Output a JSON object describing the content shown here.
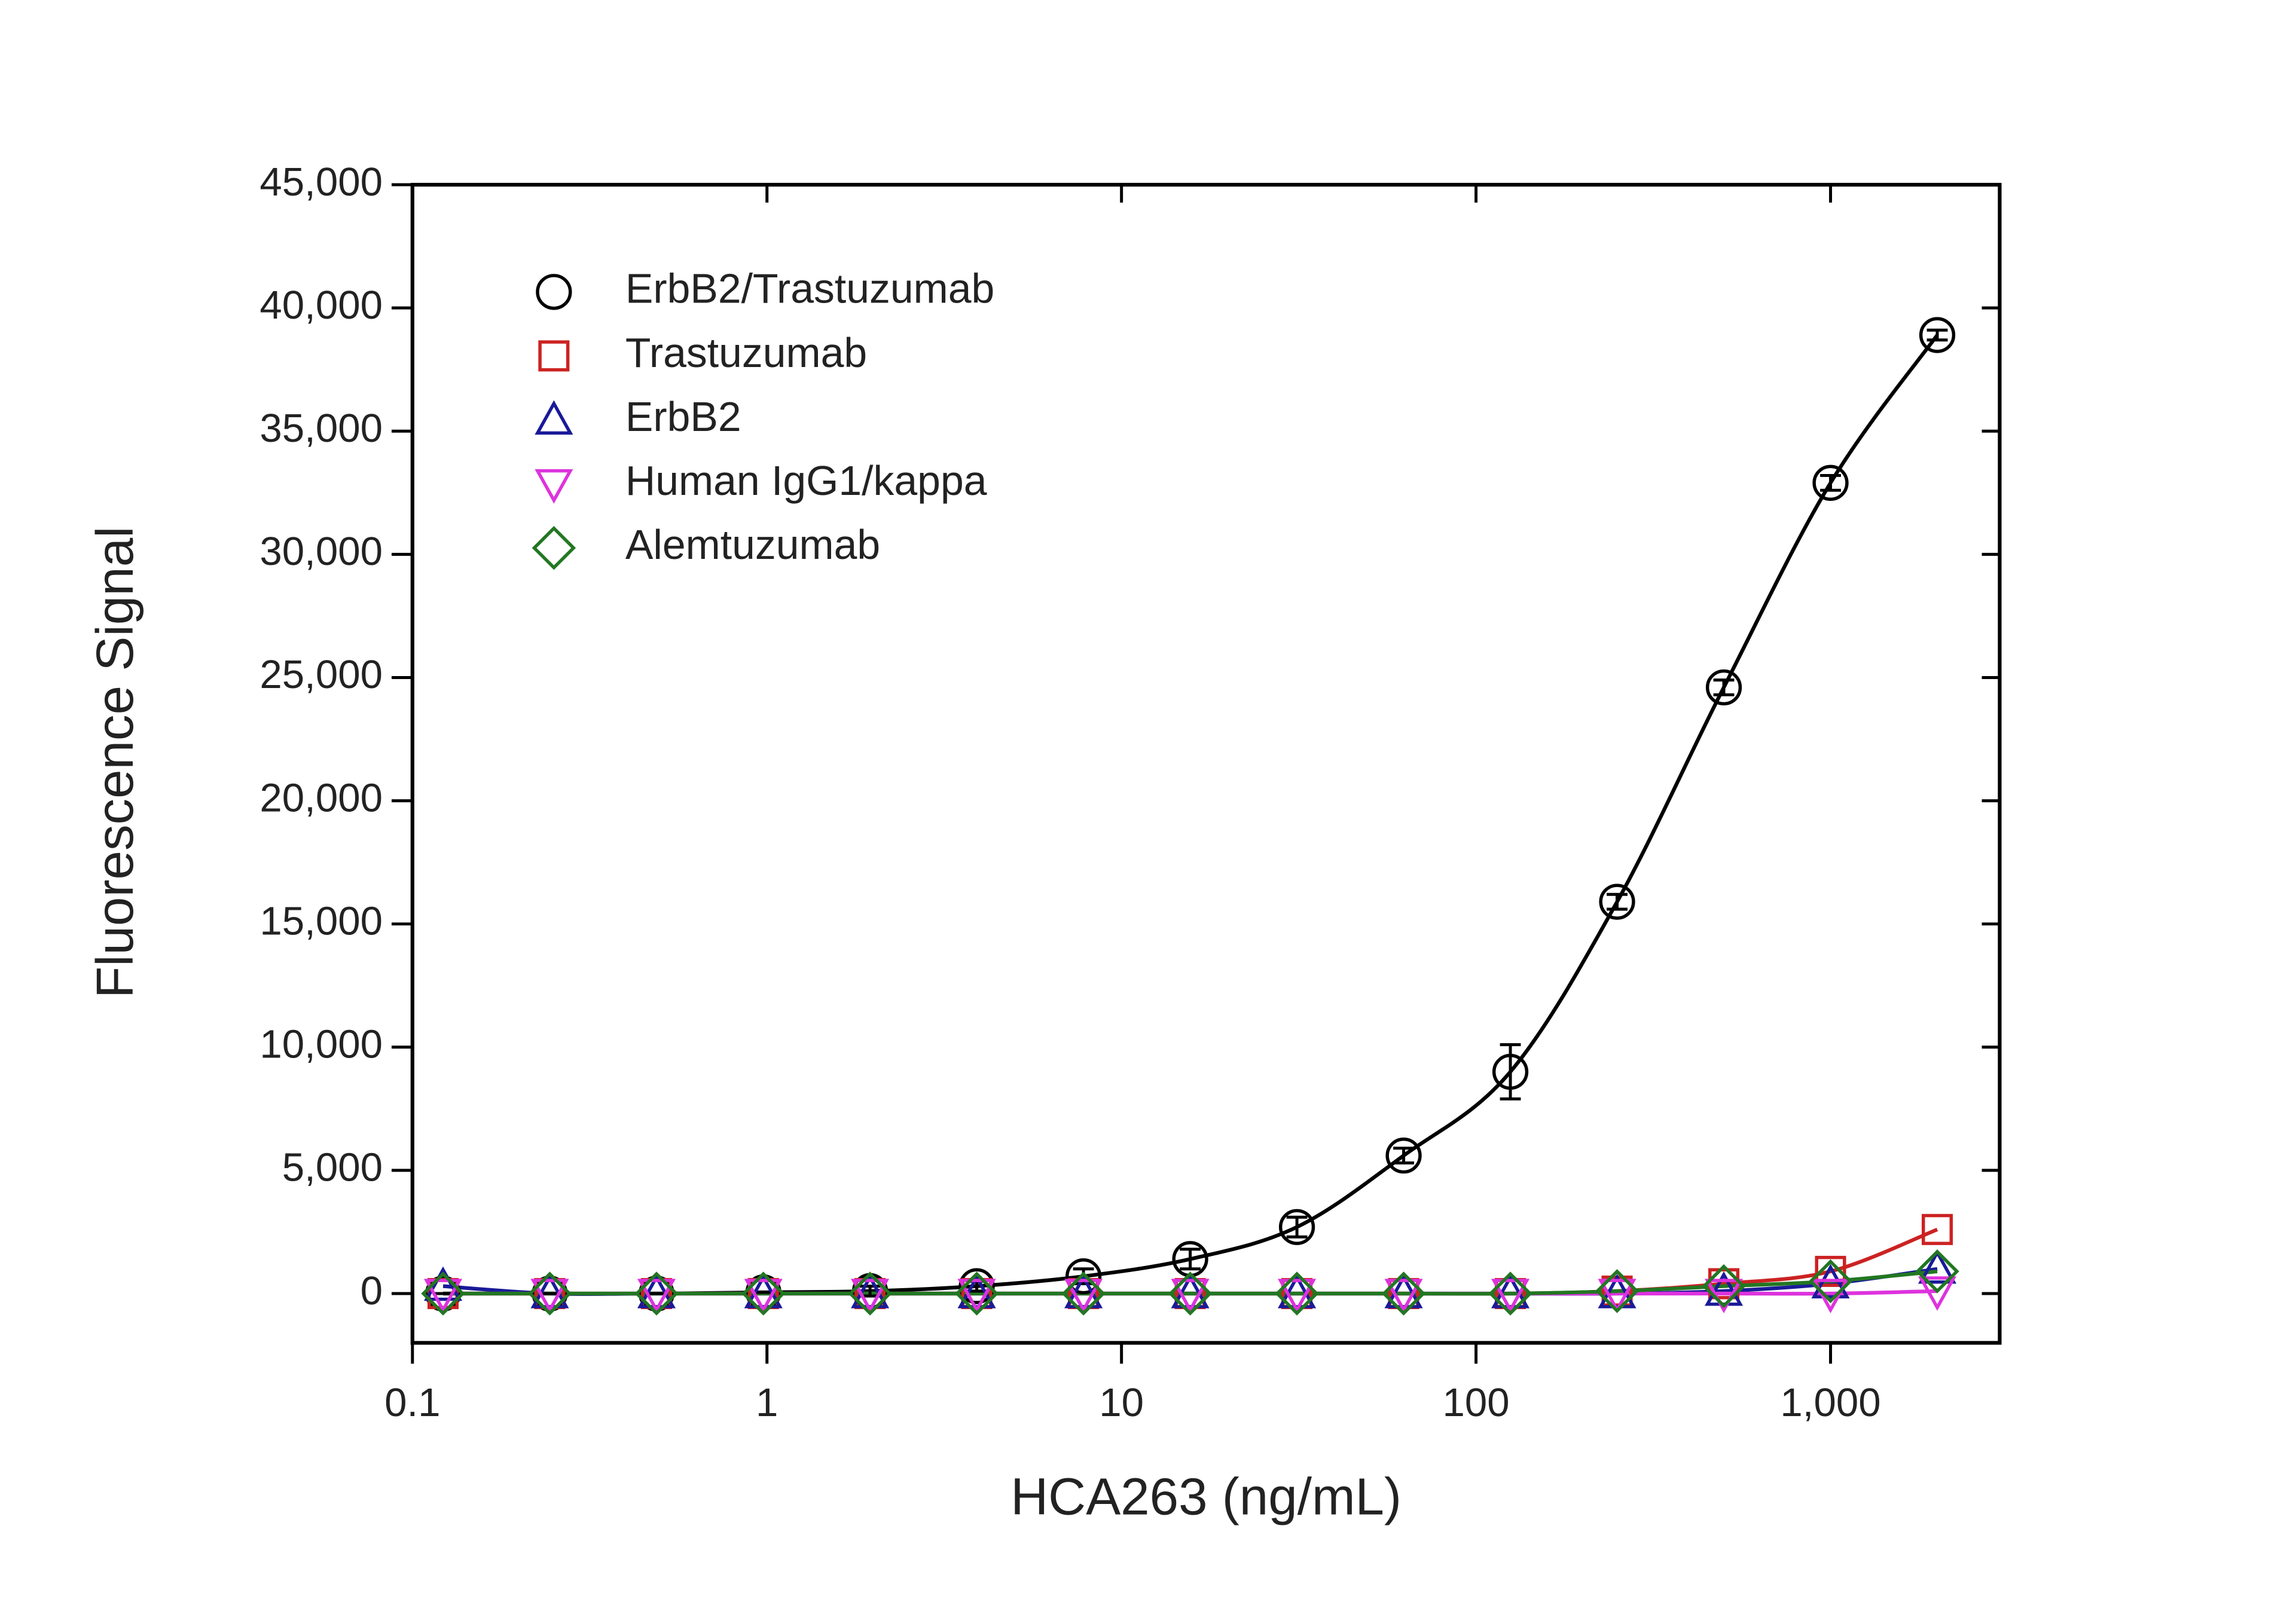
{
  "chart_data": {
    "type": "scatter",
    "x_label": "HCA263 (ng/mL)",
    "y_label": "Fluorescence Signal",
    "x": [
      0.122,
      0.244,
      0.488,
      0.977,
      1.953,
      3.906,
      7.8125,
      15.625,
      31.25,
      62.5,
      125,
      250,
      500,
      1000,
      2000
    ],
    "series": [
      {
        "name": "ErbB2/Trastuzumab",
        "color": "#000000",
        "marker": "circle",
        "values": [
          0,
          0,
          0,
          50,
          100,
          300,
          700,
          1400,
          2700,
          5600,
          9000,
          15900,
          24600,
          32900,
          38900
        ],
        "errors": [
          0,
          0,
          0,
          0,
          200,
          200,
          300,
          400,
          400,
          300,
          1100,
          300,
          300,
          300,
          200
        ]
      },
      {
        "name": "Trastuzumab",
        "color": "#cc2222",
        "marker": "square",
        "values": [
          0,
          0,
          0,
          0,
          0,
          0,
          0,
          0,
          0,
          0,
          0,
          100,
          400,
          900,
          2600
        ]
      },
      {
        "name": "ErbB2",
        "color": "#1a1a99",
        "marker": "triangle-up",
        "values": [
          300,
          0,
          0,
          0,
          0,
          0,
          0,
          0,
          0,
          0,
          0,
          0,
          100,
          400,
          1000
        ]
      },
      {
        "name": "Human IgG1/kappa",
        "color": "#dd33dd",
        "marker": "triangle-down",
        "values": [
          0,
          0,
          0,
          0,
          0,
          0,
          0,
          0,
          0,
          0,
          0,
          0,
          0,
          0,
          100
        ]
      },
      {
        "name": "Alemtuzumab",
        "color": "#227722",
        "marker": "diamond",
        "values": [
          0,
          0,
          0,
          0,
          0,
          0,
          0,
          0,
          0,
          0,
          0,
          100,
          300,
          500,
          900
        ]
      }
    ],
    "xlog": true,
    "xlim": [
      0.1,
      3000
    ],
    "ylim": [
      -2000,
      45000
    ],
    "xticks": [
      0.1,
      1,
      10,
      100,
      {
        "value": 1000,
        "label": "1,000"
      }
    ],
    "yticks": [
      0,
      {
        "value": 5000,
        "label": "5,000"
      },
      {
        "value": 10000,
        "label": "10,000"
      },
      {
        "value": 15000,
        "label": "15,000"
      },
      {
        "value": 20000,
        "label": "20,000"
      },
      {
        "value": 25000,
        "label": "25,000"
      },
      {
        "value": 30000,
        "label": "30,000"
      },
      {
        "value": 35000,
        "label": "35,000"
      },
      {
        "value": 40000,
        "label": "40,000"
      },
      {
        "value": 45000,
        "label": "45,000"
      }
    ],
    "legend": "top-left",
    "grid": false
  }
}
